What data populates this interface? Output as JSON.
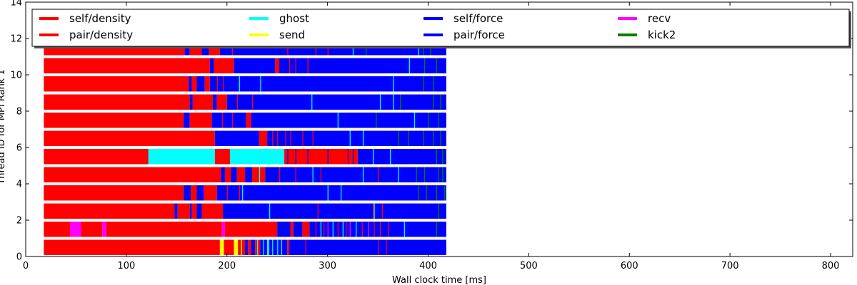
{
  "chart_data": {
    "type": "bar",
    "orientation": "horizontal",
    "title": "",
    "xlabel": "Wall clock time [ms]",
    "ylabel": "Thread ID for MPI Rank 1",
    "xlim": [
      0,
      822
    ],
    "ylim": [
      0,
      14
    ],
    "x_ticks": [
      "0",
      "100",
      "200",
      "300",
      "400",
      "500",
      "600",
      "700",
      "800"
    ],
    "y_ticks": [
      "0",
      "2",
      "4",
      "6",
      "8",
      "10",
      "12",
      "14"
    ],
    "legend_position": "top",
    "legend": [
      {
        "label": "self/density",
        "color": "#ff0000"
      },
      {
        "label": "pair/density",
        "color": "#ff0000"
      },
      {
        "label": "ghost",
        "color": "#00ffff"
      },
      {
        "label": "send",
        "color": "#ffff00"
      },
      {
        "label": "self/force",
        "color": "#0000ff"
      },
      {
        "label": "pair/force",
        "color": "#0000ff"
      },
      {
        "label": "recv",
        "color": "#ff00ff"
      },
      {
        "label": "kick2",
        "color": "#008000"
      }
    ],
    "task_colors": {
      "density": "#ff0000",
      "force": "#0000ff",
      "ghost": "#00ffff",
      "send": "#ffff00",
      "recv": "#ff00ff",
      "kick2": "#008000"
    },
    "threads": [
      {
        "thread": 0,
        "segments": [
          {
            "task": "density",
            "start": 18,
            "end": 193
          },
          {
            "task": "send",
            "start": 193,
            "end": 197
          },
          {
            "task": "density",
            "start": 197,
            "end": 207
          },
          {
            "task": "send",
            "start": 207,
            "end": 211
          },
          {
            "task": "density",
            "start": 211,
            "end": 218
          },
          {
            "task": "force",
            "start": 218,
            "end": 221
          },
          {
            "task": "density",
            "start": 221,
            "end": 224
          },
          {
            "task": "force",
            "start": 224,
            "end": 228
          },
          {
            "task": "density",
            "start": 228,
            "end": 233
          },
          {
            "task": "force",
            "start": 233,
            "end": 240
          },
          {
            "task": "ghost",
            "start": 240,
            "end": 242
          },
          {
            "task": "force",
            "start": 242,
            "end": 260
          },
          {
            "task": "density",
            "start": 260,
            "end": 262
          },
          {
            "task": "force",
            "start": 262,
            "end": 418
          }
        ]
      },
      {
        "thread": 1,
        "segments": [
          {
            "task": "density",
            "start": 18,
            "end": 44
          },
          {
            "task": "recv",
            "start": 44,
            "end": 55
          },
          {
            "task": "density",
            "start": 55,
            "end": 76
          },
          {
            "task": "recv",
            "start": 76,
            "end": 80
          },
          {
            "task": "density",
            "start": 80,
            "end": 195
          },
          {
            "task": "recv",
            "start": 195,
            "end": 198
          },
          {
            "task": "density",
            "start": 198,
            "end": 250
          },
          {
            "task": "force",
            "start": 250,
            "end": 263
          },
          {
            "task": "density",
            "start": 263,
            "end": 266
          },
          {
            "task": "force",
            "start": 266,
            "end": 275
          },
          {
            "task": "density",
            "start": 275,
            "end": 282
          },
          {
            "task": "force",
            "start": 282,
            "end": 418
          }
        ]
      },
      {
        "thread": 2,
        "segments": [
          {
            "task": "density",
            "start": 18,
            "end": 148
          },
          {
            "task": "force",
            "start": 148,
            "end": 151
          },
          {
            "task": "density",
            "start": 151,
            "end": 163
          },
          {
            "task": "force",
            "start": 163,
            "end": 165
          },
          {
            "task": "density",
            "start": 165,
            "end": 170
          },
          {
            "task": "force",
            "start": 170,
            "end": 175
          },
          {
            "task": "density",
            "start": 175,
            "end": 196
          },
          {
            "task": "force",
            "start": 196,
            "end": 418
          }
        ]
      },
      {
        "thread": 3,
        "segments": [
          {
            "task": "density",
            "start": 18,
            "end": 157
          },
          {
            "task": "force",
            "start": 157,
            "end": 164
          },
          {
            "task": "density",
            "start": 164,
            "end": 170
          },
          {
            "task": "force",
            "start": 170,
            "end": 177
          },
          {
            "task": "density",
            "start": 177,
            "end": 190
          },
          {
            "task": "force",
            "start": 190,
            "end": 418
          }
        ]
      },
      {
        "thread": 4,
        "segments": [
          {
            "task": "density",
            "start": 18,
            "end": 194
          },
          {
            "task": "force",
            "start": 194,
            "end": 198
          },
          {
            "task": "density",
            "start": 198,
            "end": 204
          },
          {
            "task": "force",
            "start": 204,
            "end": 210
          },
          {
            "task": "density",
            "start": 210,
            "end": 218
          },
          {
            "task": "force",
            "start": 218,
            "end": 225
          },
          {
            "task": "density",
            "start": 225,
            "end": 238
          },
          {
            "task": "force",
            "start": 238,
            "end": 418
          }
        ]
      },
      {
        "thread": 5,
        "segments": [
          {
            "task": "density",
            "start": 18,
            "end": 122
          },
          {
            "task": "ghost",
            "start": 122,
            "end": 188
          },
          {
            "task": "density",
            "start": 188,
            "end": 203
          },
          {
            "task": "ghost",
            "start": 203,
            "end": 257
          },
          {
            "task": "density",
            "start": 257,
            "end": 330
          },
          {
            "task": "force",
            "start": 330,
            "end": 418
          }
        ]
      },
      {
        "thread": 6,
        "segments": [
          {
            "task": "density",
            "start": 18,
            "end": 188
          },
          {
            "task": "force",
            "start": 188,
            "end": 232
          },
          {
            "task": "density",
            "start": 232,
            "end": 240
          },
          {
            "task": "force",
            "start": 240,
            "end": 418
          }
        ]
      },
      {
        "thread": 7,
        "segments": [
          {
            "task": "density",
            "start": 18,
            "end": 157
          },
          {
            "task": "force",
            "start": 157,
            "end": 163
          },
          {
            "task": "density",
            "start": 163,
            "end": 185
          },
          {
            "task": "force",
            "start": 185,
            "end": 219
          },
          {
            "task": "density",
            "start": 219,
            "end": 224
          },
          {
            "task": "force",
            "start": 224,
            "end": 418
          }
        ]
      },
      {
        "thread": 8,
        "segments": [
          {
            "task": "density",
            "start": 18,
            "end": 163
          },
          {
            "task": "force",
            "start": 163,
            "end": 166
          },
          {
            "task": "density",
            "start": 166,
            "end": 186
          },
          {
            "task": "force",
            "start": 186,
            "end": 190
          },
          {
            "task": "density",
            "start": 190,
            "end": 200
          },
          {
            "task": "force",
            "start": 200,
            "end": 418
          }
        ]
      },
      {
        "thread": 9,
        "segments": [
          {
            "task": "density",
            "start": 18,
            "end": 162
          },
          {
            "task": "force",
            "start": 162,
            "end": 165
          },
          {
            "task": "density",
            "start": 165,
            "end": 170
          },
          {
            "task": "force",
            "start": 170,
            "end": 178
          },
          {
            "task": "density",
            "start": 178,
            "end": 183
          },
          {
            "task": "force",
            "start": 183,
            "end": 418
          }
        ]
      },
      {
        "thread": 10,
        "segments": [
          {
            "task": "density",
            "start": 18,
            "end": 183
          },
          {
            "task": "force",
            "start": 183,
            "end": 187
          },
          {
            "task": "density",
            "start": 187,
            "end": 207
          },
          {
            "task": "force",
            "start": 207,
            "end": 248
          },
          {
            "task": "density",
            "start": 248,
            "end": 252
          },
          {
            "task": "force",
            "start": 252,
            "end": 418
          }
        ]
      },
      {
        "thread": 11,
        "segments": [
          {
            "task": "density",
            "start": 18,
            "end": 158
          },
          {
            "task": "force",
            "start": 158,
            "end": 163
          },
          {
            "task": "density",
            "start": 163,
            "end": 175
          },
          {
            "task": "force",
            "start": 175,
            "end": 182
          },
          {
            "task": "density",
            "start": 182,
            "end": 193
          },
          {
            "task": "force",
            "start": 193,
            "end": 418
          }
        ]
      }
    ],
    "markers": [
      {
        "thread": 0,
        "task": "ghost",
        "at": [
          230,
          236,
          245,
          250,
          254
        ]
      },
      {
        "thread": 0,
        "task": "send",
        "at": [
          214
        ]
      },
      {
        "thread": 0,
        "task": "density",
        "at": [
          278,
          350,
          358
        ]
      },
      {
        "thread": 1,
        "task": "density",
        "at": [
          288,
          296,
          310,
          318,
          334,
          346,
          352,
          360
        ]
      },
      {
        "thread": 1,
        "task": "recv",
        "at": [
          300,
          322,
          340
        ]
      },
      {
        "thread": 1,
        "task": "ghost",
        "at": [
          293,
          305,
          315,
          328,
          376
        ]
      },
      {
        "thread": 1,
        "task": "kick2",
        "at": [
          408
        ]
      },
      {
        "thread": 2,
        "task": "density",
        "at": [
          290,
          345,
          354
        ]
      },
      {
        "thread": 2,
        "task": "ghost",
        "at": [
          242,
          346
        ]
      },
      {
        "thread": 2,
        "task": "kick2",
        "at": [
          410
        ]
      },
      {
        "thread": 3,
        "task": "density",
        "at": [
          200,
          212,
          300
        ]
      },
      {
        "thread": 3,
        "task": "ghost",
        "at": [
          215,
          300,
          313
        ]
      },
      {
        "thread": 3,
        "task": "kick2",
        "at": [
          390,
          398,
          408,
          416
        ]
      },
      {
        "thread": 4,
        "task": "density",
        "at": [
          252,
          268,
          293,
          350
        ]
      },
      {
        "thread": 4,
        "task": "ghost",
        "at": [
          232,
          285,
          335,
          370
        ]
      },
      {
        "thread": 4,
        "task": "kick2",
        "at": [
          388,
          396,
          410,
          414
        ]
      },
      {
        "thread": 5,
        "task": "force",
        "at": [
          260,
          268,
          280,
          300,
          320,
          325
        ]
      },
      {
        "thread": 5,
        "task": "ghost",
        "at": [
          345,
          362
        ]
      },
      {
        "thread": 5,
        "task": "kick2",
        "at": [
          408,
          414
        ]
      },
      {
        "thread": 6,
        "task": "density",
        "at": [
          245,
          250,
          258,
          263,
          275,
          285
        ]
      },
      {
        "thread": 6,
        "task": "ghost",
        "at": [
          322,
          335
        ]
      },
      {
        "thread": 6,
        "task": "kick2",
        "at": [
          370,
          380,
          395,
          405,
          412
        ]
      },
      {
        "thread": 7,
        "task": "density",
        "at": [
          195,
          205
        ]
      },
      {
        "thread": 7,
        "task": "ghost",
        "at": [
          310,
          386
        ]
      },
      {
        "thread": 7,
        "task": "kick2",
        "at": [
          348,
          400,
          410
        ]
      },
      {
        "thread": 8,
        "task": "density",
        "at": [
          210,
          225
        ]
      },
      {
        "thread": 8,
        "task": "ghost",
        "at": [
          284,
          352,
          365
        ]
      },
      {
        "thread": 8,
        "task": "kick2",
        "at": [
          372,
          405,
          412
        ]
      },
      {
        "thread": 9,
        "task": "density",
        "at": [
          190,
          196
        ]
      },
      {
        "thread": 9,
        "task": "ghost",
        "at": [
          212,
          233,
          365
        ]
      },
      {
        "thread": 9,
        "task": "kick2",
        "at": [
          395,
          405
        ]
      },
      {
        "thread": 10,
        "task": "density",
        "at": [
          262,
          268,
          280
        ]
      },
      {
        "thread": 10,
        "task": "ghost",
        "at": [
          381
        ]
      },
      {
        "thread": 10,
        "task": "kick2",
        "at": [
          396,
          408
        ]
      },
      {
        "thread": 11,
        "task": "density",
        "at": [
          205,
          260,
          288,
          300
        ]
      },
      {
        "thread": 11,
        "task": "ghost",
        "at": [
          325,
          390
        ]
      },
      {
        "thread": 11,
        "task": "kick2",
        "at": [
          338,
          395,
          402
        ]
      }
    ]
  }
}
